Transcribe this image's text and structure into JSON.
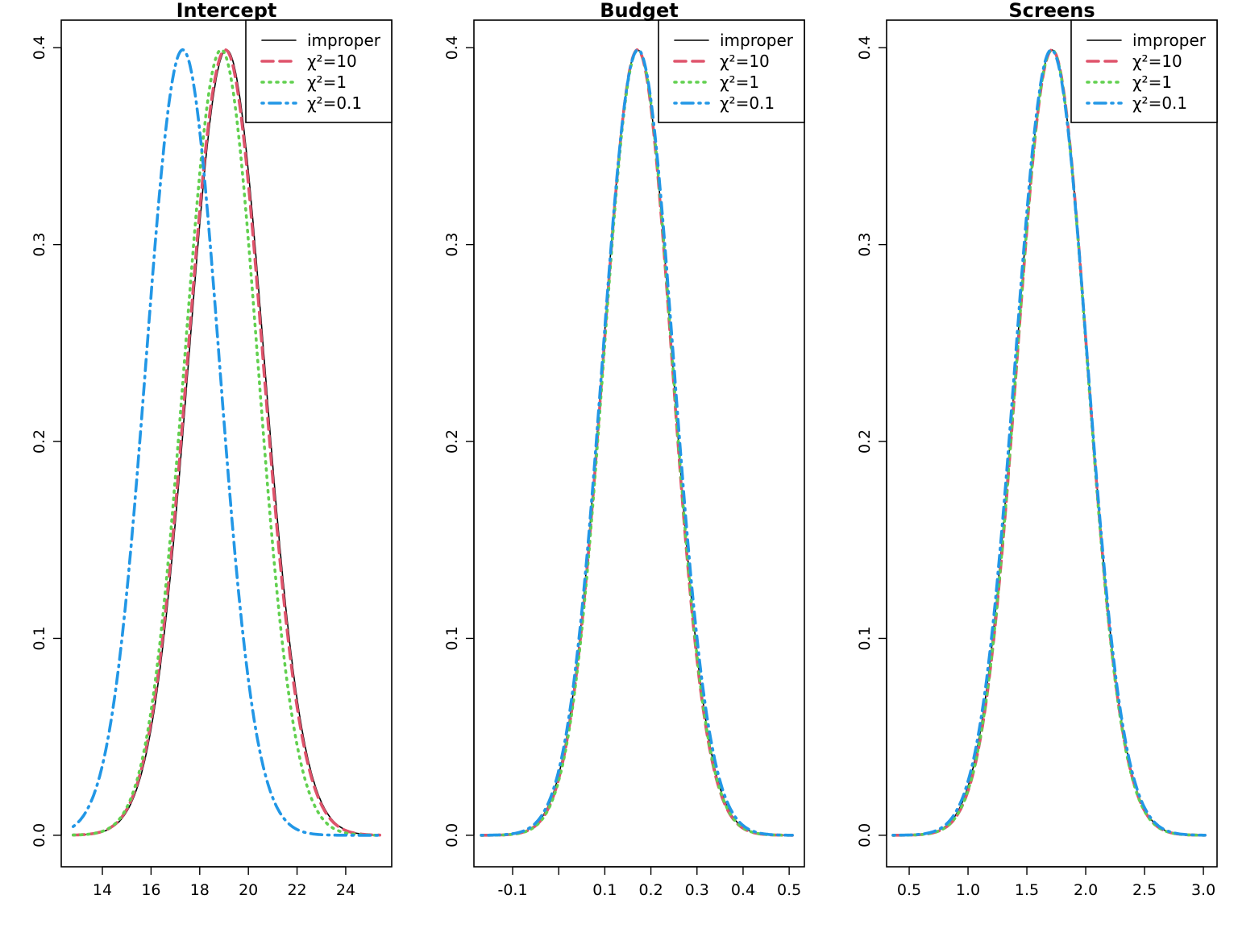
{
  "chart_data": [
    {
      "type": "line",
      "title": "Intercept",
      "xlabel": "",
      "ylabel": "",
      "xlim": [
        12.31,
        25.89
      ],
      "ylim": [
        -0.016,
        0.414
      ],
      "x_ticks": [
        14,
        16,
        18,
        20,
        22,
        24
      ],
      "x_tick_labels": [
        "14",
        "16",
        "18",
        "20",
        "22",
        "24"
      ],
      "y_ticks": [
        0,
        0.1,
        0.2,
        0.3,
        0.4
      ],
      "y_tick_labels": [
        "0.0",
        "0.1",
        "0.2",
        "0.3",
        "0.4"
      ],
      "x_span": [
        12.8,
        25.4
      ],
      "series": [
        {
          "name": "improper",
          "mean": 19.1,
          "sd": 1.55,
          "color": "#000000",
          "style": "solid"
        },
        {
          "name": "χ²=10",
          "mean": 19.05,
          "sd": 1.55,
          "color": "#DF536B",
          "style": "dashed"
        },
        {
          "name": "χ²=1",
          "mean": 18.88,
          "sd": 1.5,
          "color": "#61D04F",
          "style": "dotted"
        },
        {
          "name": "χ²=0.1",
          "mean": 17.3,
          "sd": 1.5,
          "color": "#2297E6",
          "style": "dotdash"
        }
      ],
      "legend": "top-right"
    },
    {
      "type": "line",
      "title": "Budget",
      "xlabel": "",
      "ylabel": "",
      "xlim": [
        -0.184,
        0.533
      ],
      "ylim": [
        -0.016,
        0.414
      ],
      "x_ticks": [
        -0.1,
        0,
        0.1,
        0.2,
        0.3,
        0.4,
        0.5
      ],
      "x_tick_labels": [
        "-0.1",
        "",
        "0.1",
        "0.2",
        "0.3",
        "0.4",
        "0.5"
      ],
      "y_ticks": [
        0,
        0.1,
        0.2,
        0.3,
        0.4
      ],
      "y_tick_labels": [
        "0.0",
        "0.1",
        "0.2",
        "0.3",
        "0.4"
      ],
      "x_span": [
        -0.168,
        0.507
      ],
      "series": [
        {
          "name": "improper",
          "mean": 0.171,
          "sd": 0.0755,
          "color": "#000000",
          "style": "solid"
        },
        {
          "name": "χ²=10",
          "mean": 0.171,
          "sd": 0.0745,
          "color": "#DF536B",
          "style": "dashed"
        },
        {
          "name": "χ²=1",
          "mean": 0.172,
          "sd": 0.0745,
          "color": "#61D04F",
          "style": "dotted"
        },
        {
          "name": "χ²=0.1",
          "mean": 0.172,
          "sd": 0.077,
          "color": "#2297E6",
          "style": "dotdash"
        }
      ],
      "legend": "top-right"
    },
    {
      "type": "line",
      "title": "Screens",
      "xlabel": "",
      "ylabel": "",
      "xlim": [
        0.308,
        3.116
      ],
      "ylim": [
        -0.016,
        0.414
      ],
      "x_ticks": [
        0.5,
        1,
        1.5,
        2,
        2.5,
        3
      ],
      "x_tick_labels": [
        "0.5",
        "1.0",
        "1.5",
        "2.0",
        "2.5",
        "3.0"
      ],
      "y_ticks": [
        0,
        0.1,
        0.2,
        0.3,
        0.4
      ],
      "y_tick_labels": [
        "0.0",
        "0.1",
        "0.2",
        "0.3",
        "0.4"
      ],
      "x_span": [
        0.363,
        3.014
      ],
      "series": [
        {
          "name": "improper",
          "mean": 1.712,
          "sd": 0.302,
          "color": "#000000",
          "style": "solid"
        },
        {
          "name": "χ²=10",
          "mean": 1.715,
          "sd": 0.298,
          "color": "#DF536B",
          "style": "dashed"
        },
        {
          "name": "χ²=1",
          "mean": 1.713,
          "sd": 0.298,
          "color": "#61D04F",
          "style": "dotted"
        },
        {
          "name": "χ²=0.1",
          "mean": 1.708,
          "sd": 0.306,
          "color": "#2297E6",
          "style": "dotdash"
        }
      ],
      "legend": "top-right"
    }
  ]
}
